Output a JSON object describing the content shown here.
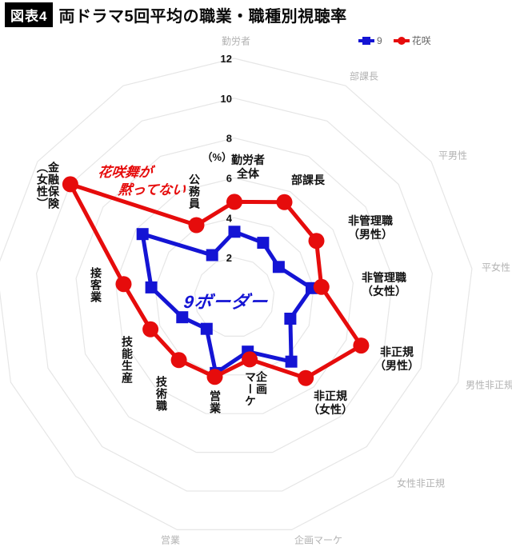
{
  "title": {
    "badge": "図表4",
    "text": "両ドラマ5回平均の職業・職種別視聴率"
  },
  "legend": [
    {
      "label": "9",
      "color": "#1414d4",
      "marker": "square"
    },
    {
      "label": "花咲",
      "color": "#e60c0c",
      "marker": "circle"
    }
  ],
  "annotations": {
    "red_line1": "花咲舞が",
    "red_line2": "黙ってない",
    "blue": "9ボーダー"
  },
  "colors": {
    "series_9": "#1414d4",
    "series_hanasaki": "#e60c0c",
    "grid": "#e6e6e6",
    "tick_text": "#111111",
    "outer_label_text": "#b3b3b3"
  },
  "chart_data": {
    "type": "radar",
    "title": "両ドラマ5回平均の職業・職種別視聴率",
    "unit_label": "（%）",
    "axis_count": 13,
    "ring_values": [
      2,
      4,
      6,
      8,
      10,
      12
    ],
    "tick_labels": [
      "12",
      "10",
      "8",
      "6",
      "4",
      "2"
    ],
    "ylim": [
      0,
      12
    ],
    "grid": true,
    "legend_position": "top-right",
    "categories": [
      "勤労者全体",
      "部課長",
      "非管理職（男性）",
      "非管理職（女性）",
      "非正規（男性）",
      "非正規（女性）",
      "企画マーケ",
      "営業",
      "技術職",
      "技能生産",
      "接客業",
      "金融保険（女性）",
      "公務員"
    ],
    "axis_display": [
      [
        "勤労者",
        "全体"
      ],
      [
        "部課長"
      ],
      [
        "非管理職",
        "（男性）"
      ],
      [
        "非管理職",
        "（女性）"
      ],
      [
        "非正規",
        "（男性）"
      ],
      [
        "非正規",
        "（女性）"
      ],
      [
        "企画",
        "マーケ"
      ],
      [
        "営業"
      ],
      [
        "技術職"
      ],
      [
        "技能生産"
      ],
      [
        "接客業"
      ],
      [
        "金融保険",
        "（女性）"
      ],
      [
        "公務員"
      ]
    ],
    "series": [
      {
        "name": "9",
        "color": "#1414d4",
        "marker": "square",
        "values": [
          3.3,
          3.1,
          2.7,
          3.9,
          3.0,
          4.3,
          2.8,
          3.9,
          2.1,
          2.8,
          4.2,
          5.6,
          2.4
        ]
      },
      {
        "name": "花咲",
        "color": "#e60c0c",
        "marker": "circle",
        "values": [
          4.8,
          5.4,
          5.0,
          4.4,
          6.8,
          5.4,
          3.2,
          4.1,
          4.2,
          4.5,
          5.6,
          10.0,
          4.1
        ]
      }
    ],
    "outer_labels": [
      "勤労者",
      "部課長",
      "平男性",
      "平女性",
      "男性非正規",
      "女性非正規",
      "企画マーケ",
      "営業"
    ]
  }
}
